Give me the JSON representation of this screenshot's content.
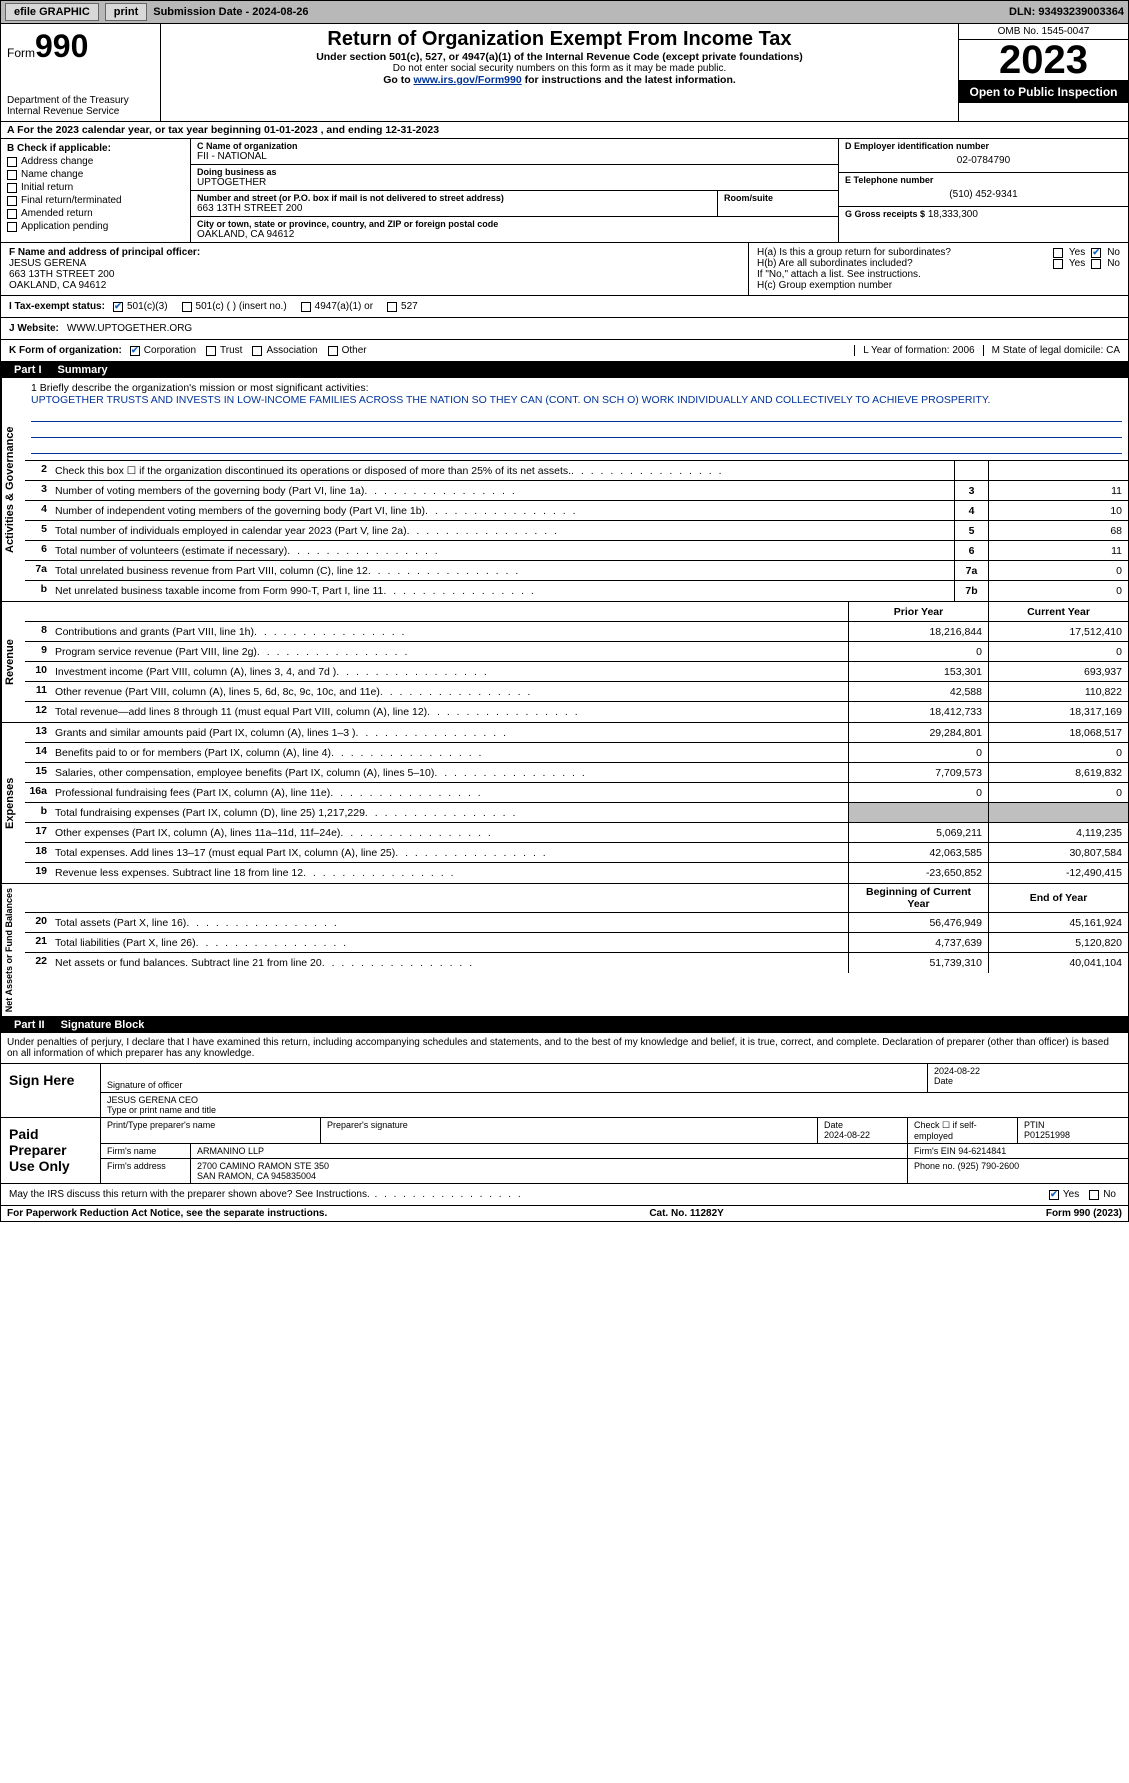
{
  "topbar": {
    "efile": "efile GRAPHIC",
    "print": "print",
    "subdate_label": "Submission Date - 2024-08-26",
    "dln": "DLN: 93493239003364"
  },
  "header": {
    "form_prefix": "Form",
    "form_no": "990",
    "dept": "Department of the Treasury\nInternal Revenue Service",
    "title": "Return of Organization Exempt From Income Tax",
    "sub": "Under section 501(c), 527, or 4947(a)(1) of the Internal Revenue Code (except private foundations)",
    "note": "Do not enter social security numbers on this form as it may be made public.",
    "go": "Go to www.irs.gov/Form990 for instructions and the latest information.",
    "go_link": "www.irs.gov/Form990",
    "omb": "OMB No. 1545-0047",
    "year": "2023",
    "openpub": "Open to Public Inspection"
  },
  "row_a": "A For the 2023 calendar year, or tax year beginning 01-01-2023   , and ending 12-31-2023",
  "col_b": {
    "heading": "B Check if applicable:",
    "items": [
      "Address change",
      "Name change",
      "Initial return",
      "Final return/terminated",
      "Amended return",
      "Application pending"
    ]
  },
  "col_c": {
    "name_lbl": "C Name of organization",
    "name": "FII - NATIONAL",
    "dba_lbl": "Doing business as",
    "dba": "UPTOGETHER",
    "street_lbl": "Number and street (or P.O. box if mail is not delivered to street address)",
    "street": "663 13TH STREET 200",
    "room_lbl": "Room/suite",
    "city_lbl": "City or town, state or province, country, and ZIP or foreign postal code",
    "city": "OAKLAND, CA  94612"
  },
  "col_d": {
    "ein_lbl": "D Employer identification number",
    "ein": "02-0784790",
    "phone_lbl": "E Telephone number",
    "phone": "(510) 452-9341",
    "gross_lbl": "G Gross receipts $",
    "gross": "18,333,300"
  },
  "row_f": {
    "lbl": "F  Name and address of principal officer:",
    "name": "JESUS GERENA",
    "addr1": "663 13TH STREET 200",
    "addr2": "OAKLAND, CA  94612",
    "ha": "H(a)  Is this a group return for subordinates?",
    "hb": "H(b)  Are all subordinates included?",
    "hb_note": "If \"No,\" attach a list. See instructions.",
    "hc": "H(c)  Group exemption number",
    "yes": "Yes",
    "no": "No"
  },
  "row_i": {
    "lbl": "I   Tax-exempt status:",
    "c3": "501(c)(3)",
    "c": "501(c) (  ) (insert no.)",
    "a1": "4947(a)(1) or",
    "s527": "527"
  },
  "row_j": {
    "lbl": "J   Website:",
    "val": "WWW.UPTOGETHER.ORG"
  },
  "row_k": {
    "lbl": "K Form of organization:",
    "opts": [
      "Corporation",
      "Trust",
      "Association",
      "Other"
    ],
    "l": "L Year of formation: 2006",
    "m": "M State of legal domicile: CA"
  },
  "part1": {
    "label": "Part I",
    "title": "Summary"
  },
  "vtabs": {
    "ag": "Activities & Governance",
    "rev": "Revenue",
    "exp": "Expenses",
    "net": "Net Assets or\nFund Balances"
  },
  "mission": {
    "q": "1  Briefly describe the organization's mission or most significant activities:",
    "text": "UPTOGETHER TRUSTS AND INVESTS IN LOW-INCOME FAMILIES ACROSS THE NATION SO THEY CAN (CONT. ON SCH O) WORK INDIVIDUALLY AND COLLECTIVELY TO ACHIEVE PROSPERITY."
  },
  "lines_ag": [
    {
      "n": "2",
      "d": "Check this box ☐ if the organization discontinued its operations or disposed of more than 25% of its net assets.",
      "box": "",
      "v": ""
    },
    {
      "n": "3",
      "d": "Number of voting members of the governing body (Part VI, line 1a)",
      "box": "3",
      "v": "11"
    },
    {
      "n": "4",
      "d": "Number of independent voting members of the governing body (Part VI, line 1b)",
      "box": "4",
      "v": "10"
    },
    {
      "n": "5",
      "d": "Total number of individuals employed in calendar year 2023 (Part V, line 2a)",
      "box": "5",
      "v": "68"
    },
    {
      "n": "6",
      "d": "Total number of volunteers (estimate if necessary)",
      "box": "6",
      "v": "11"
    },
    {
      "n": "7a",
      "d": "Total unrelated business revenue from Part VIII, column (C), line 12",
      "box": "7a",
      "v": "0"
    },
    {
      "n": "b",
      "d": "Net unrelated business taxable income from Form 990-T, Part I, line 11",
      "box": "7b",
      "v": "0"
    }
  ],
  "col_heads": {
    "prior": "Prior Year",
    "current": "Current Year",
    "begin": "Beginning of Current Year",
    "end": "End of Year"
  },
  "lines_rev": [
    {
      "n": "8",
      "d": "Contributions and grants (Part VIII, line 1h)",
      "p": "18,216,844",
      "c": "17,512,410"
    },
    {
      "n": "9",
      "d": "Program service revenue (Part VIII, line 2g)",
      "p": "0",
      "c": "0"
    },
    {
      "n": "10",
      "d": "Investment income (Part VIII, column (A), lines 3, 4, and 7d )",
      "p": "153,301",
      "c": "693,937"
    },
    {
      "n": "11",
      "d": "Other revenue (Part VIII, column (A), lines 5, 6d, 8c, 9c, 10c, and 11e)",
      "p": "42,588",
      "c": "110,822"
    },
    {
      "n": "12",
      "d": "Total revenue—add lines 8 through 11 (must equal Part VIII, column (A), line 12)",
      "p": "18,412,733",
      "c": "18,317,169"
    }
  ],
  "lines_exp": [
    {
      "n": "13",
      "d": "Grants and similar amounts paid (Part IX, column (A), lines 1–3 )",
      "p": "29,284,801",
      "c": "18,068,517"
    },
    {
      "n": "14",
      "d": "Benefits paid to or for members (Part IX, column (A), line 4)",
      "p": "0",
      "c": "0"
    },
    {
      "n": "15",
      "d": "Salaries, other compensation, employee benefits (Part IX, column (A), lines 5–10)",
      "p": "7,709,573",
      "c": "8,619,832"
    },
    {
      "n": "16a",
      "d": "Professional fundraising fees (Part IX, column (A), line 11e)",
      "p": "0",
      "c": "0"
    },
    {
      "n": "b",
      "d": "Total fundraising expenses (Part IX, column (D), line 25) 1,217,229",
      "p": "",
      "c": "",
      "shade": true
    },
    {
      "n": "17",
      "d": "Other expenses (Part IX, column (A), lines 11a–11d, 11f–24e)",
      "p": "5,069,211",
      "c": "4,119,235"
    },
    {
      "n": "18",
      "d": "Total expenses. Add lines 13–17 (must equal Part IX, column (A), line 25)",
      "p": "42,063,585",
      "c": "30,807,584"
    },
    {
      "n": "19",
      "d": "Revenue less expenses. Subtract line 18 from line 12",
      "p": "-23,650,852",
      "c": "-12,490,415"
    }
  ],
  "lines_net": [
    {
      "n": "20",
      "d": "Total assets (Part X, line 16)",
      "p": "56,476,949",
      "c": "45,161,924"
    },
    {
      "n": "21",
      "d": "Total liabilities (Part X, line 26)",
      "p": "4,737,639",
      "c": "5,120,820"
    },
    {
      "n": "22",
      "d": "Net assets or fund balances. Subtract line 21 from line 20",
      "p": "51,739,310",
      "c": "40,041,104"
    }
  ],
  "part2": {
    "label": "Part II",
    "title": "Signature Block"
  },
  "sig": {
    "penalty": "Under penalties of perjury, I declare that I have examined this return, including accompanying schedules and statements, and to the best of my knowledge and belief, it is true, correct, and complete. Declaration of preparer (other than officer) is based on all information of which preparer has any knowledge.",
    "sign_here": "Sign Here",
    "sig_officer": "Signature of officer",
    "officer_name": "JESUS GERENA  CEO",
    "type_name": "Type or print name and title",
    "date1": "2024-08-22",
    "date_lbl": "Date",
    "paid": "Paid Preparer Use Only",
    "prep_name_lbl": "Print/Type preparer's name",
    "prep_sig_lbl": "Preparer's signature",
    "date2": "2024-08-22",
    "check_self": "Check ☐ if self-employed",
    "ptin_lbl": "PTIN",
    "ptin": "P01251998",
    "firm_name_lbl": "Firm's name",
    "firm_name": "ARMANINO LLP",
    "firm_ein_lbl": "Firm's EIN",
    "firm_ein": "94-6214841",
    "firm_addr_lbl": "Firm's address",
    "firm_addr": "2700 CAMINO RAMON STE 350\nSAN RAMON, CA  945835004",
    "phone_lbl": "Phone no.",
    "phone": "(925) 790-2600",
    "discuss": "May the IRS discuss this return with the preparer shown above? See Instructions.",
    "yes": "Yes",
    "no": "No"
  },
  "footer": {
    "pra": "For Paperwork Reduction Act Notice, see the separate instructions.",
    "cat": "Cat. No. 11282Y",
    "form": "Form 990 (2023)"
  },
  "colors": {
    "topbar_bg": "#b8b8b8",
    "link": "#003399",
    "check": "#1565c0",
    "shade": "#bfbfbf"
  }
}
